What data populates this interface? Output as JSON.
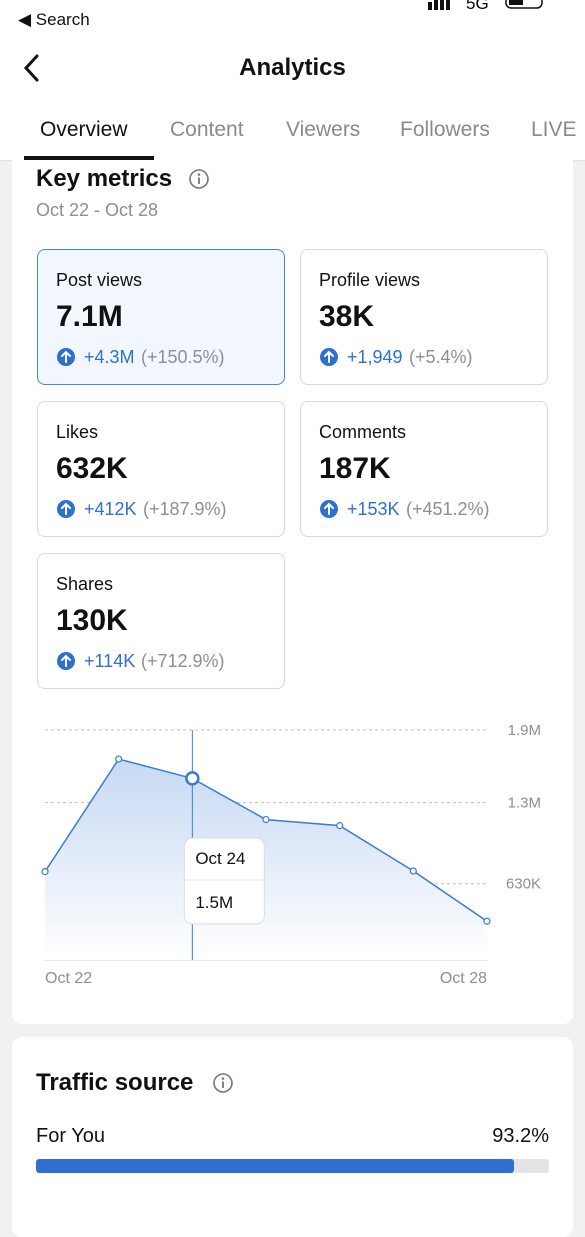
{
  "status_bar": {
    "back_label": "Search",
    "network": "5G"
  },
  "header": {
    "title": "Analytics"
  },
  "tabs": [
    "Overview",
    "Content",
    "Viewers",
    "Followers",
    "LIVE"
  ],
  "key_metrics": {
    "title": "Key metrics",
    "date_range": "Oct 22 - Oct 28",
    "metrics": [
      {
        "label": "Post views",
        "value": "7.1M",
        "change": "+4.3M",
        "change_pct": "(+150.5%)"
      },
      {
        "label": "Profile views",
        "value": "38K",
        "change": "+1,949",
        "change_pct": "(+5.4%)"
      },
      {
        "label": "Likes",
        "value": "632K",
        "change": "+412K",
        "change_pct": "(+187.9%)"
      },
      {
        "label": "Comments",
        "value": "187K",
        "change": "+153K",
        "change_pct": "(+451.2%)"
      },
      {
        "label": "Shares",
        "value": "130K",
        "change": "+114K",
        "change_pct": "(+712.9%)"
      }
    ]
  },
  "chart_data": {
    "type": "area",
    "categories": [
      "Oct 22",
      null,
      null,
      null,
      null,
      null,
      "Oct 28"
    ],
    "values": [
      730000,
      1660000,
      1500000,
      1160000,
      1110000,
      735000,
      320000
    ],
    "value_labels": [
      null,
      null,
      "1.5M",
      null,
      null,
      null,
      null
    ],
    "tooltip_category": "Oct 24",
    "color": "#3a7bd5",
    "ylim": [
      0,
      1900000
    ],
    "yticks": [
      {
        "value": 630000,
        "label": "630K"
      },
      {
        "value": 1300000,
        "label": "1.3M"
      },
      {
        "value": 1900000,
        "label": "1.9M"
      }
    ],
    "grid": true
  },
  "traffic_source": {
    "title": "Traffic source",
    "items": [
      {
        "name": "For You",
        "value": 93.2,
        "value_label": "93.2%"
      }
    ]
  }
}
